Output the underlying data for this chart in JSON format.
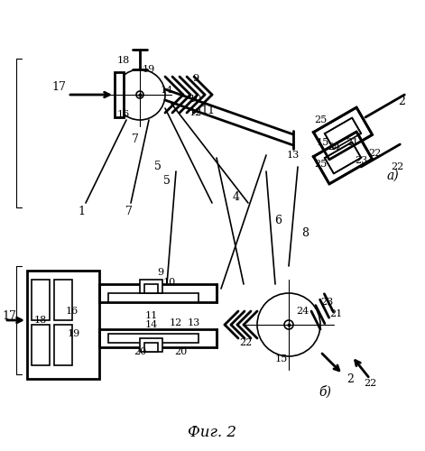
{
  "title": "Фиг. 2",
  "bg_color": "#ffffff",
  "line_color": "#000000",
  "fig_width": 4.71,
  "fig_height": 5.0,
  "dpi": 100
}
